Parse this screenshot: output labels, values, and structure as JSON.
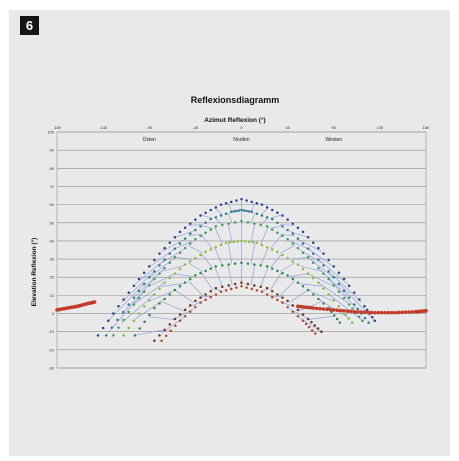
{
  "figure": {
    "number": "6"
  },
  "chart_data": {
    "type": "scatter",
    "title": "Reflexionsdiagramm",
    "xlabel": "Azimut Reflexion (°)",
    "ylabel": "Elevation Reflexion (°)",
    "xlim": [
      -180,
      180
    ],
    "ylim": [
      -30,
      100
    ],
    "x_ticks": [
      "-180",
      "-135",
      "-90",
      "-45",
      "0",
      "45",
      "90",
      "135",
      "180"
    ],
    "y_ticks": [
      "100",
      "90",
      "80",
      "70",
      "60",
      "50",
      "40",
      "30",
      "20",
      "10",
      "0",
      "-10",
      "-20",
      "-30"
    ],
    "regions": [
      {
        "label": "Osten",
        "x": -90
      },
      {
        "label": "Norden",
        "x": 0
      },
      {
        "label": "Westen",
        "x": 90
      }
    ],
    "grid": true,
    "colors": {
      "grid": "#8f8f8f",
      "mesh": "#7e8fd8",
      "sun_path": "#c23b2b",
      "series": [
        "#2d3f8c",
        "#2f7a8f",
        "#3f9a62",
        "#8fb83a",
        "#2d8a4e",
        "#6b3325",
        "#b24a2a"
      ]
    },
    "series": [
      {
        "peak": 63,
        "half_width": 132,
        "values": [
          [
            -140,
            -12
          ],
          [
            -120,
            4
          ],
          [
            -100,
            19
          ],
          [
            -80,
            33
          ],
          [
            -60,
            45
          ],
          [
            -40,
            54
          ],
          [
            -20,
            60
          ],
          [
            0,
            63
          ],
          [
            20,
            60
          ],
          [
            40,
            54
          ],
          [
            60,
            45
          ],
          [
            80,
            33
          ],
          [
            100,
            19
          ],
          [
            120,
            4
          ],
          [
            130,
            -4
          ]
        ]
      },
      {
        "peak": 57,
        "half_width": 124,
        "values": [
          [
            -132,
            -12
          ],
          [
            -110,
            5
          ],
          [
            -90,
            20
          ],
          [
            -70,
            33
          ],
          [
            -50,
            44
          ],
          [
            -30,
            52
          ],
          [
            -10,
            56
          ],
          [
            0,
            57
          ],
          [
            10,
            56
          ],
          [
            30,
            52
          ],
          [
            50,
            44
          ],
          [
            70,
            33
          ],
          [
            90,
            20
          ],
          [
            110,
            5
          ],
          [
            124,
            -5
          ]
        ]
      },
      {
        "peak": 51,
        "half_width": 118,
        "values": [
          [
            -125,
            -12
          ],
          [
            -105,
            5
          ],
          [
            -85,
            19
          ],
          [
            -65,
            31
          ],
          [
            -45,
            41
          ],
          [
            -25,
            48
          ],
          [
            0,
            51
          ],
          [
            25,
            48
          ],
          [
            45,
            41
          ],
          [
            65,
            31
          ],
          [
            85,
            19
          ],
          [
            105,
            5
          ],
          [
            118,
            -4
          ]
        ]
      },
      {
        "peak": 40,
        "half_width": 108,
        "values": [
          [
            -115,
            -12
          ],
          [
            -95,
            4
          ],
          [
            -75,
            17
          ],
          [
            -55,
            27
          ],
          [
            -35,
            34
          ],
          [
            -15,
            39
          ],
          [
            0,
            40
          ],
          [
            15,
            39
          ],
          [
            35,
            34
          ],
          [
            55,
            27
          ],
          [
            75,
            17
          ],
          [
            95,
            4
          ],
          [
            108,
            -5
          ]
        ]
      },
      {
        "peak": 28,
        "half_width": 96,
        "values": [
          [
            -104,
            -12
          ],
          [
            -85,
            3
          ],
          [
            -65,
            13
          ],
          [
            -45,
            21
          ],
          [
            -25,
            26
          ],
          [
            0,
            28
          ],
          [
            25,
            26
          ],
          [
            45,
            21
          ],
          [
            65,
            13
          ],
          [
            85,
            3
          ],
          [
            96,
            -5
          ]
        ]
      },
      {
        "peak": 17,
        "half_width": 76,
        "values": [
          [
            -85,
            -15
          ],
          [
            -65,
            -3
          ],
          [
            -45,
            7
          ],
          [
            -25,
            14
          ],
          [
            0,
            17
          ],
          [
            25,
            14
          ],
          [
            45,
            7
          ],
          [
            65,
            -3
          ],
          [
            78,
            -10
          ]
        ]
      },
      {
        "peak": 15,
        "half_width": 70,
        "values": [
          [
            -78,
            -15
          ],
          [
            -60,
            -4
          ],
          [
            -40,
            6
          ],
          [
            -20,
            12
          ],
          [
            0,
            15
          ],
          [
            20,
            12
          ],
          [
            40,
            6
          ],
          [
            60,
            -4
          ],
          [
            72,
            -11
          ]
        ]
      }
    ],
    "sun_path": {
      "name": "",
      "values": [
        [
          -180,
          2
        ],
        [
          -170,
          3
        ],
        [
          -160,
          4
        ],
        [
          -150,
          5.5
        ],
        [
          -142,
          6.5
        ],
        [
          55,
          4
        ],
        [
          70,
          3
        ],
        [
          90,
          2
        ],
        [
          110,
          1
        ],
        [
          130,
          0.5
        ],
        [
          150,
          0.5
        ],
        [
          170,
          1
        ],
        [
          180,
          1.5
        ]
      ]
    }
  }
}
